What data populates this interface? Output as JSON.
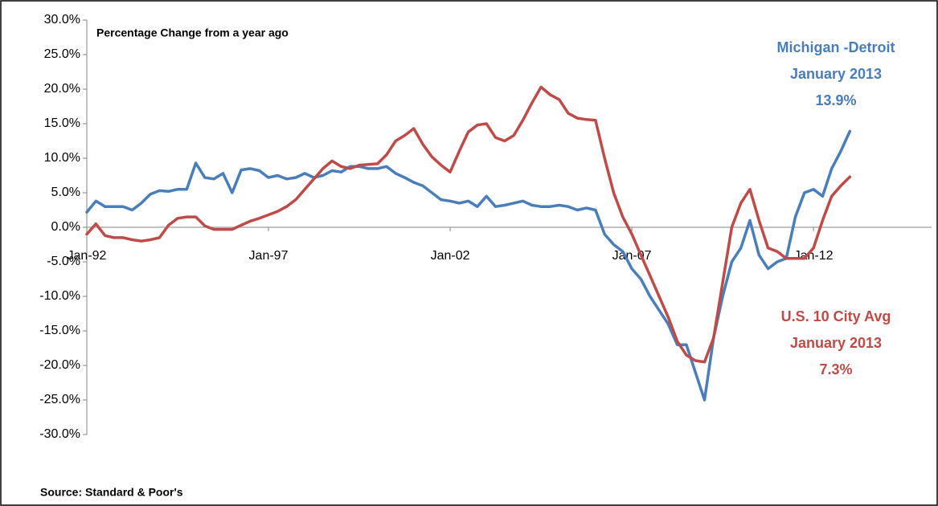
{
  "chart_data": {
    "type": "line",
    "subtitle": "Percentage Change from a year ago",
    "source": "Source: Standard & Poor's",
    "x": [
      1992,
      1992.25,
      1992.5,
      1992.75,
      1993,
      1993.25,
      1993.5,
      1993.75,
      1994,
      1994.25,
      1994.5,
      1994.75,
      1995,
      1995.25,
      1995.5,
      1995.75,
      1996,
      1996.25,
      1996.5,
      1996.75,
      1997,
      1997.25,
      1997.5,
      1997.75,
      1998,
      1998.25,
      1998.5,
      1998.75,
      1999,
      1999.25,
      1999.5,
      1999.75,
      2000,
      2000.25,
      2000.5,
      2000.75,
      2001,
      2001.25,
      2001.5,
      2001.75,
      2002,
      2002.25,
      2002.5,
      2002.75,
      2003,
      2003.25,
      2003.5,
      2003.75,
      2004,
      2004.25,
      2004.5,
      2004.75,
      2005,
      2005.25,
      2005.5,
      2005.75,
      2006,
      2006.25,
      2006.5,
      2006.75,
      2007,
      2007.25,
      2007.5,
      2007.75,
      2008,
      2008.25,
      2008.5,
      2008.75,
      2009,
      2009.25,
      2009.5,
      2009.75,
      2010,
      2010.25,
      2010.5,
      2010.75,
      2011,
      2011.25,
      2011.5,
      2011.75,
      2012,
      2012.25,
      2012.5,
      2012.75,
      2013
    ],
    "series": [
      {
        "name": "Michigan -Detroit",
        "color": "#4a7ebb",
        "values": [
          2.2,
          3.8,
          3.0,
          3.0,
          3.0,
          2.5,
          3.5,
          4.8,
          5.3,
          5.2,
          5.5,
          5.5,
          9.3,
          7.2,
          7.0,
          7.8,
          5.0,
          8.3,
          8.5,
          8.2,
          7.2,
          7.5,
          7.0,
          7.2,
          7.8,
          7.2,
          7.5,
          8.2,
          8.0,
          8.8,
          8.8,
          8.5,
          8.5,
          8.8,
          7.8,
          7.2,
          6.5,
          6.0,
          5.0,
          4.0,
          3.8,
          3.5,
          3.8,
          3.0,
          4.5,
          3.0,
          3.2,
          3.5,
          3.8,
          3.2,
          3.0,
          3.0,
          3.2,
          3.0,
          2.5,
          2.8,
          2.5,
          -1.0,
          -2.5,
          -3.5,
          -6.0,
          -7.5,
          -10.0,
          -12.0,
          -14.0,
          -17.0,
          -17.0,
          -21.0,
          -25.0,
          -16.0,
          -10.0,
          -5.0,
          -3.0,
          1.0,
          -4.0,
          -6.0,
          -5.0,
          -4.5,
          1.5,
          5.0,
          5.5,
          4.5,
          8.5,
          11.0,
          13.9
        ]
      },
      {
        "name": "U.S. 10 City Avg",
        "color": "#be4b48",
        "values": [
          -1.0,
          0.5,
          -1.2,
          -1.5,
          -1.5,
          -1.8,
          -2.0,
          -1.8,
          -1.5,
          0.3,
          1.3,
          1.5,
          1.5,
          0.2,
          -0.3,
          -0.3,
          -0.3,
          0.3,
          0.9,
          1.3,
          1.8,
          2.3,
          3.0,
          4.0,
          5.5,
          7.0,
          8.5,
          9.6,
          8.8,
          8.5,
          9.0,
          9.1,
          9.2,
          10.5,
          12.5,
          13.3,
          14.3,
          12.0,
          10.2,
          9.0,
          8.0,
          11.0,
          13.8,
          14.8,
          15.0,
          13.0,
          12.5,
          13.3,
          15.5,
          18.0,
          20.3,
          19.2,
          18.5,
          16.5,
          15.8,
          15.6,
          15.5,
          10.0,
          5.0,
          1.5,
          -1.0,
          -4.0,
          -7.0,
          -10.0,
          -13.0,
          -16.5,
          -18.5,
          -19.3,
          -19.5,
          -16.0,
          -8.0,
          0.0,
          3.5,
          5.5,
          1.0,
          -3.0,
          -3.5,
          -4.5,
          -4.5,
          -4.5,
          -3.0,
          1.0,
          4.5,
          6.0,
          7.3
        ]
      }
    ],
    "annotations": [
      {
        "lines": [
          "Michigan -Detroit",
          "January 2013",
          "13.9%"
        ],
        "color": "#4a7ebb"
      },
      {
        "lines": [
          "U.S. 10 City Avg",
          "January 2013",
          "7.3%"
        ],
        "color": "#be4b48"
      }
    ],
    "xlim": [
      1992,
      2015.25
    ],
    "xticks": [
      {
        "value": 1992,
        "label": "Jan-92"
      },
      {
        "value": 1997,
        "label": "Jan-97"
      },
      {
        "value": 2002,
        "label": "Jan-02"
      },
      {
        "value": 2007,
        "label": "Jan-07"
      },
      {
        "value": 2012,
        "label": "Jan-12"
      }
    ],
    "ylim": [
      -30,
      30
    ],
    "yticks": [
      {
        "value": 30,
        "label": "30.0%"
      },
      {
        "value": 25,
        "label": "25.0%"
      },
      {
        "value": 20,
        "label": "20.0%"
      },
      {
        "value": 15,
        "label": "15.0%"
      },
      {
        "value": 10,
        "label": "10.0%"
      },
      {
        "value": 5,
        "label": "5.0%"
      },
      {
        "value": 0,
        "label": "0.0%"
      },
      {
        "value": -5,
        "label": "-5.0%"
      },
      {
        "value": -10,
        "label": "-10.0%"
      },
      {
        "value": -15,
        "label": "-15.0%"
      },
      {
        "value": -20,
        "label": "-20.0%"
      },
      {
        "value": -25,
        "label": "-25.0%"
      },
      {
        "value": -30,
        "label": "-30.0%"
      }
    ],
    "grid": false
  }
}
